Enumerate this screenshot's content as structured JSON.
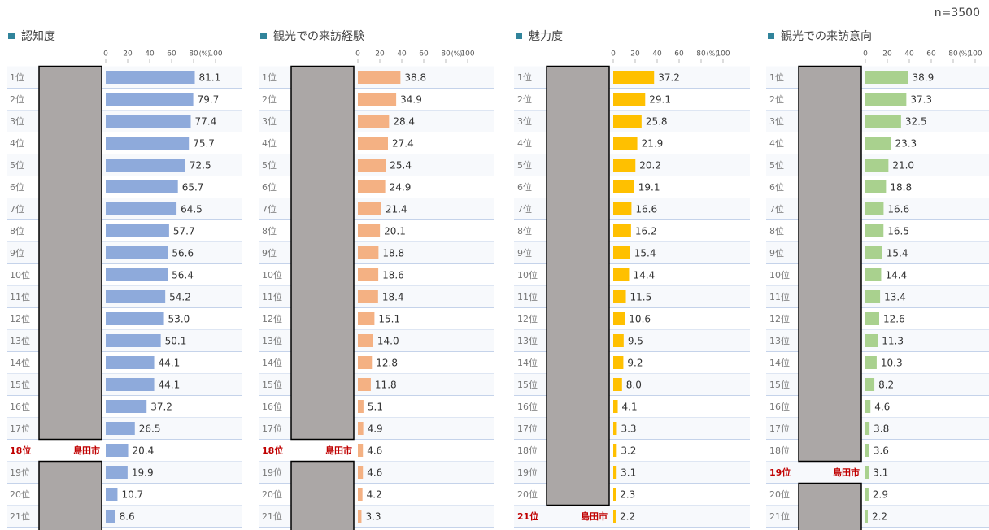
{
  "sample_size": "n=3500",
  "chart_data": [
    {
      "type": "bar",
      "orientation": "horizontal",
      "title": "認知度",
      "color": "#8eaadb",
      "categories": [
        "1位",
        "2位",
        "3位",
        "4位",
        "5位",
        "6位",
        "7位",
        "8位",
        "9位",
        "10位",
        "11位",
        "12位",
        "13位",
        "14位",
        "15位",
        "16位",
        "17位",
        "18位",
        "19位",
        "20位",
        "21位"
      ],
      "values": [
        81.1,
        79.7,
        77.4,
        75.7,
        72.5,
        65.7,
        64.5,
        57.7,
        56.6,
        56.4,
        54.2,
        53.0,
        50.1,
        44.1,
        44.1,
        37.2,
        26.5,
        20.4,
        19.9,
        10.7,
        8.6
      ],
      "value_labels": [
        "81.1",
        "79.7",
        "77.4",
        "75.7",
        "72.5",
        "65.7",
        "64.5",
        "57.7",
        "56.6",
        "56.4",
        "54.2",
        "53.0",
        "50.1",
        "44.1",
        "44.1",
        "37.2",
        "26.5",
        "20.4",
        "19.9",
        "10.7",
        "8.6"
      ],
      "highlight_index": 17,
      "highlight_label": "島田市",
      "xlim": [
        0,
        100
      ],
      "xticks": [
        0,
        20,
        40,
        60,
        80,
        100
      ],
      "unit_label": "(%)"
    },
    {
      "type": "bar",
      "orientation": "horizontal",
      "title": "観光での来訪経験",
      "color": "#f4b183",
      "categories": [
        "1位",
        "2位",
        "3位",
        "4位",
        "5位",
        "6位",
        "7位",
        "8位",
        "9位",
        "10位",
        "11位",
        "12位",
        "13位",
        "14位",
        "15位",
        "16位",
        "17位",
        "18位",
        "19位",
        "20位",
        "21位"
      ],
      "values": [
        38.8,
        34.9,
        28.4,
        27.4,
        25.4,
        24.9,
        21.4,
        20.1,
        18.8,
        18.6,
        18.4,
        15.1,
        14.0,
        12.8,
        11.8,
        5.1,
        4.9,
        4.6,
        4.6,
        4.2,
        3.3
      ],
      "value_labels": [
        "38.8",
        "34.9",
        "28.4",
        "27.4",
        "25.4",
        "24.9",
        "21.4",
        "20.1",
        "18.8",
        "18.6",
        "18.4",
        "15.1",
        "14.0",
        "12.8",
        "11.8",
        "5.1",
        "4.9",
        "4.6",
        "4.6",
        "4.2",
        "3.3"
      ],
      "highlight_index": 17,
      "highlight_label": "島田市",
      "xlim": [
        0,
        100
      ],
      "xticks": [
        0,
        20,
        40,
        60,
        80,
        100
      ],
      "unit_label": "(%)"
    },
    {
      "type": "bar",
      "orientation": "horizontal",
      "title": "魅力度",
      "color": "#ffc000",
      "categories": [
        "1位",
        "2位",
        "3位",
        "4位",
        "5位",
        "6位",
        "7位",
        "8位",
        "9位",
        "10位",
        "11位",
        "12位",
        "13位",
        "14位",
        "15位",
        "16位",
        "17位",
        "18位",
        "19位",
        "20位",
        "21位"
      ],
      "values": [
        37.2,
        29.1,
        25.8,
        21.9,
        20.2,
        19.1,
        16.6,
        16.2,
        15.4,
        14.4,
        11.5,
        10.6,
        9.5,
        9.2,
        8.0,
        4.1,
        3.3,
        3.2,
        3.1,
        2.3,
        2.2
      ],
      "value_labels": [
        "37.2",
        "29.1",
        "25.8",
        "21.9",
        "20.2",
        "19.1",
        "16.6",
        "16.2",
        "15.4",
        "14.4",
        "11.5",
        "10.6",
        "9.5",
        "9.2",
        "8.0",
        "4.1",
        "3.3",
        "3.2",
        "3.1",
        "2.3",
        "2.2"
      ],
      "highlight_index": 20,
      "highlight_label": "島田市",
      "xlim": [
        0,
        100
      ],
      "xticks": [
        0,
        20,
        40,
        60,
        80,
        100
      ],
      "unit_label": "(%)"
    },
    {
      "type": "bar",
      "orientation": "horizontal",
      "title": "観光での来訪意向",
      "color": "#a9d18e",
      "categories": [
        "1位",
        "2位",
        "3位",
        "4位",
        "5位",
        "6位",
        "7位",
        "8位",
        "9位",
        "10位",
        "11位",
        "12位",
        "13位",
        "14位",
        "15位",
        "16位",
        "17位",
        "18位",
        "19位",
        "20位",
        "21位"
      ],
      "values": [
        38.9,
        37.3,
        32.5,
        23.3,
        21.0,
        18.8,
        16.6,
        16.5,
        15.4,
        14.4,
        13.4,
        12.6,
        11.3,
        10.3,
        8.2,
        4.6,
        3.8,
        3.6,
        3.1,
        2.9,
        2.2
      ],
      "value_labels": [
        "38.9",
        "37.3",
        "32.5",
        "23.3",
        "21.0",
        "18.8",
        "16.6",
        "16.5",
        "15.4",
        "14.4",
        "13.4",
        "12.6",
        "11.3",
        "10.3",
        "8.2",
        "4.6",
        "3.8",
        "3.6",
        "3.1",
        "2.9",
        "2.2"
      ],
      "highlight_index": 18,
      "highlight_label": "島田市",
      "xlim": [
        0,
        100
      ],
      "xticks": [
        0,
        20,
        40,
        60,
        80,
        100
      ],
      "unit_label": "(%)"
    }
  ]
}
